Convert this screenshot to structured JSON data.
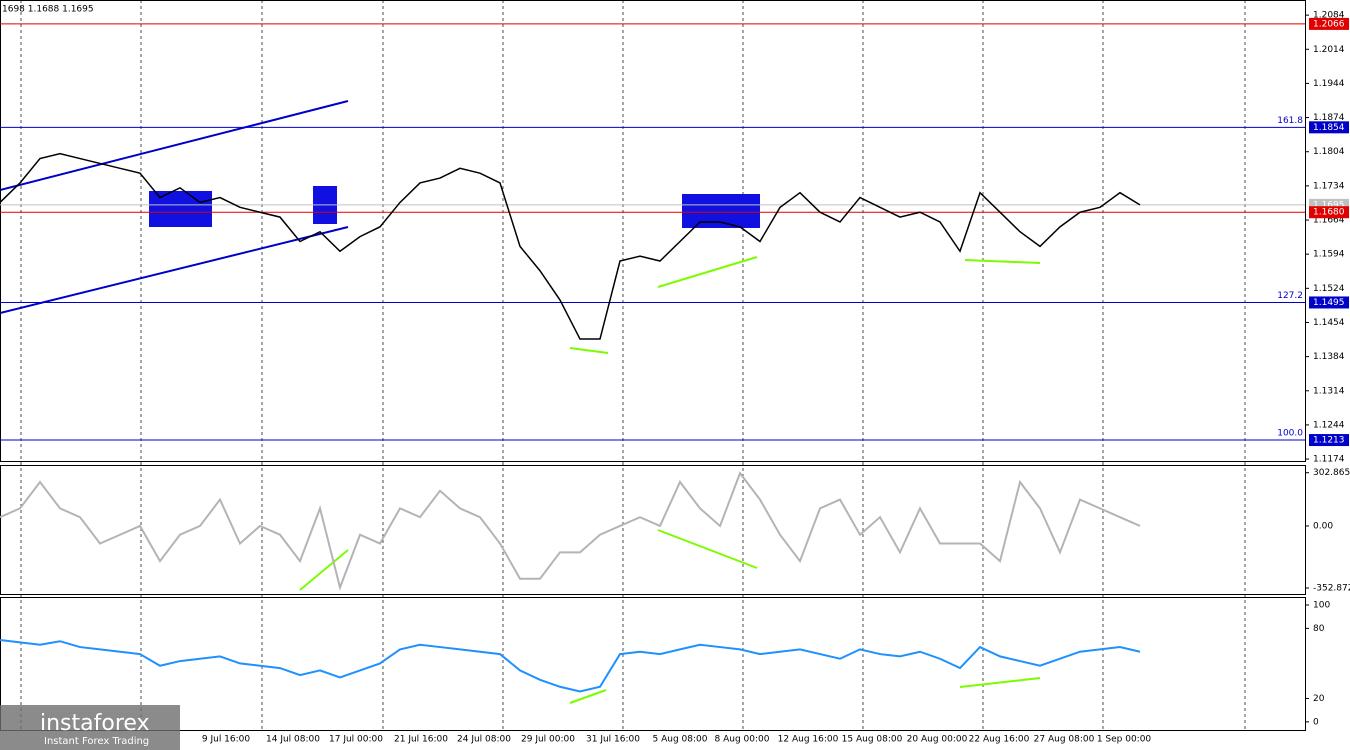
{
  "header": "1698 1.1688 1.1695",
  "time_axis": [
    "9 Jul 16:00",
    "14 Jul 08:00",
    "17 Jul 00:00",
    "21 Jul 16:00",
    "24 Jul 08:00",
    "29 Jul 00:00",
    "31 Jul 16:00",
    "5 Aug 08:00",
    "8 Aug 00:00",
    "12 Aug 16:00",
    "15 Aug 08:00",
    "20 Aug 00:00",
    "22 Aug 16:00",
    "27 Aug 08:00",
    "1 Sep 00:00"
  ],
  "watermark": {
    "brand": "instaforex",
    "tagline": "Instant Forex Trading"
  },
  "chart_data": [
    {
      "type": "line",
      "color": "#000000",
      "values": [
        1.17,
        1.174,
        1.179,
        1.18,
        1.179,
        1.178,
        1.177,
        1.176,
        1.171,
        1.173,
        1.17,
        1.171,
        1.169,
        1.168,
        1.167,
        1.162,
        1.164,
        1.16,
        1.163,
        1.165,
        1.17,
        1.174,
        1.175,
        1.177,
        1.176,
        1.174,
        1.161,
        1.156,
        1.15,
        1.142,
        1.142,
        1.158,
        1.159,
        1.158,
        1.162,
        1.166,
        1.166,
        1.165,
        1.162,
        1.169,
        1.172,
        1.168,
        1.166,
        1.171,
        1.169,
        1.167,
        1.168,
        1.166,
        1.16,
        1.172,
        1.168,
        1.164,
        1.161,
        1.165,
        1.168,
        1.169,
        1.172,
        1.1695
      ],
      "ylim": [
        1.1168,
        1.2115
      ],
      "yticks": [
        1.2084,
        1.2014,
        1.1944,
        1.1874,
        1.1804,
        1.1734,
        1.1664,
        1.1594,
        1.1524,
        1.1454,
        1.1384,
        1.1314,
        1.1244,
        1.1174
      ],
      "levels": [
        {
          "value": 1.2066,
          "label": "1.2066",
          "color": "#e00000"
        },
        {
          "value": 1.1854,
          "label": "1.1854",
          "color": "#0000c8",
          "fib": "161.8"
        },
        {
          "value": 1.1695,
          "label": "1.1695",
          "color": "#c0c0c0"
        },
        {
          "value": 1.168,
          "label": "1.1680",
          "color": "#e00000"
        },
        {
          "value": 1.1495,
          "label": "1.1495",
          "color": "#0000c8",
          "fib": "127.2"
        },
        {
          "value": 1.1213,
          "label": "1.1213",
          "color": "#0000c8",
          "fib": "100.0"
        }
      ]
    },
    {
      "type": "line",
      "color": "#b4b4b4",
      "values": [
        50,
        100,
        250,
        100,
        50,
        -100,
        -50,
        0,
        -200,
        -50,
        0,
        150,
        -100,
        0,
        -50,
        -200,
        100,
        -350,
        -50,
        -100,
        100,
        50,
        200,
        100,
        50,
        -100,
        -300,
        -300,
        -150,
        -150,
        -50,
        0,
        50,
        0,
        250,
        100,
        0,
        300,
        150,
        -50,
        -200,
        100,
        150,
        -50,
        50,
        -150,
        100,
        -100,
        -100,
        -100,
        -200,
        250,
        100,
        -150,
        150,
        100,
        50,
        0
      ],
      "ylim": [
        -387,
        341
      ],
      "yticks": [
        302.8654,
        {
          "value": 0,
          "label": "0.00"
        },
        -352.872
      ]
    },
    {
      "type": "line",
      "color": "#1e90ff",
      "values": [
        70,
        68,
        66,
        69,
        64,
        62,
        60,
        58,
        48,
        52,
        54,
        56,
        50,
        48,
        46,
        40,
        44,
        38,
        44,
        50,
        62,
        66,
        64,
        62,
        60,
        58,
        44,
        36,
        30,
        26,
        30,
        58,
        60,
        58,
        62,
        66,
        64,
        62,
        58,
        60,
        62,
        58,
        54,
        62,
        58,
        56,
        60,
        54,
        46,
        64,
        56,
        52,
        48,
        54,
        60,
        62,
        64,
        60
      ],
      "ylim": [
        -7,
        106
      ],
      "yticks": [
        100,
        80,
        20,
        0
      ]
    }
  ]
}
